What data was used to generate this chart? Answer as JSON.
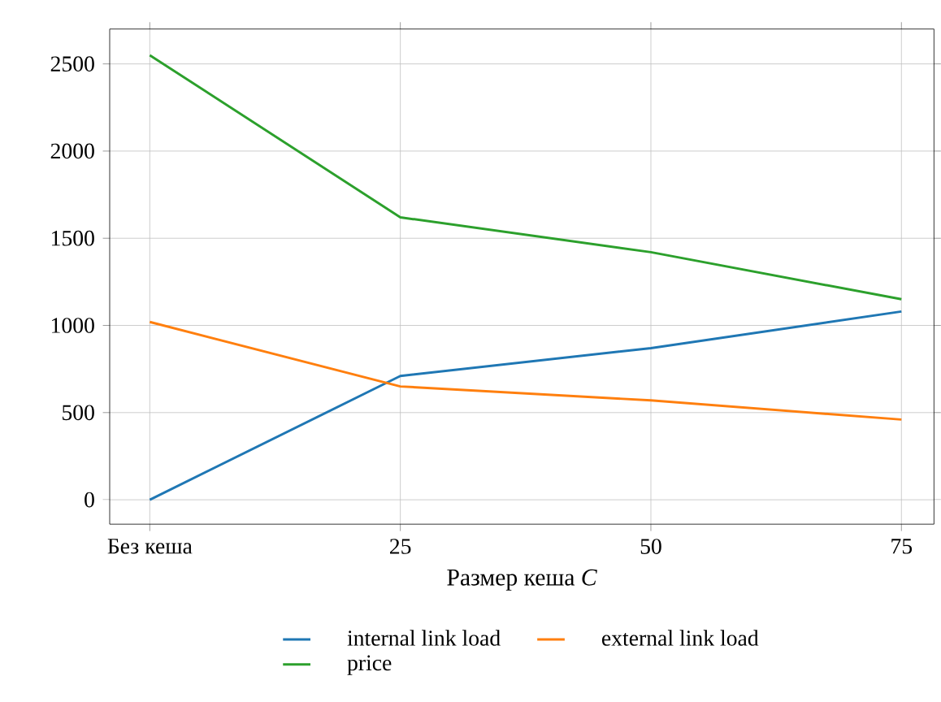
{
  "chart_data": {
    "type": "line",
    "xlabel": "Размер кеша *C*",
    "categories": [
      "Без кеша",
      "25",
      "50",
      "75"
    ],
    "series": [
      {
        "name": "internal link load",
        "color": "#1f77b4",
        "values": [
          0,
          710,
          870,
          1080
        ]
      },
      {
        "name": "external link load",
        "color": "#ff7f0e",
        "values": [
          1020,
          650,
          570,
          460
        ]
      },
      {
        "name": "price",
        "color": "#2ca02c",
        "values": [
          2550,
          1620,
          1420,
          1150
        ]
      }
    ],
    "ylim": [
      -140,
      2700
    ],
    "yticks": [
      0,
      500,
      1000,
      1500,
      2000,
      2500
    ],
    "grid": true,
    "legend": "bottom",
    "marker": "none",
    "line_style": "solid"
  }
}
